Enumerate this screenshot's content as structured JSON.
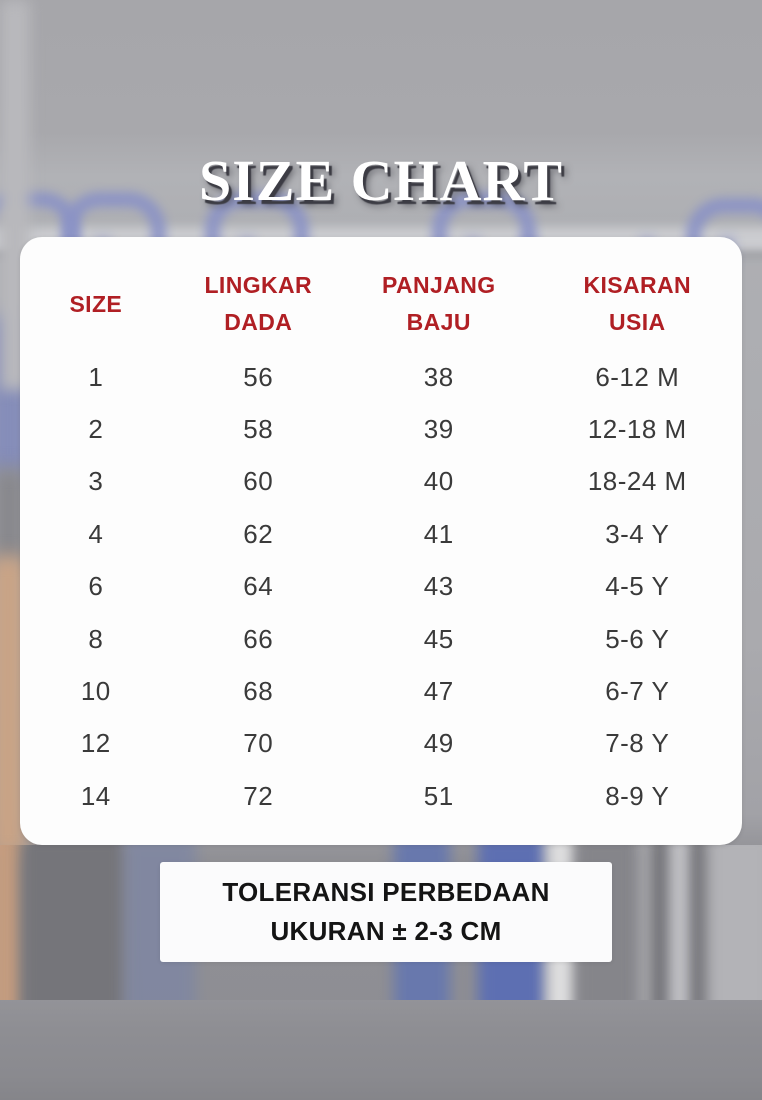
{
  "title": "SIZE CHART",
  "chart_data": {
    "type": "table",
    "title": "SIZE CHART",
    "columns": [
      "SIZE",
      "LINGKAR DADA",
      "PANJANG BAJU",
      "KISARAN USIA"
    ],
    "rows": [
      [
        "1",
        "56",
        "38",
        "6-12 M"
      ],
      [
        "2",
        "58",
        "39",
        "12-18 M"
      ],
      [
        "3",
        "60",
        "40",
        "18-24 M"
      ],
      [
        "4",
        "62",
        "41",
        "3-4 Y"
      ],
      [
        "6",
        "64",
        "43",
        "4-5 Y"
      ],
      [
        "8",
        "66",
        "45",
        "5-6 Y"
      ],
      [
        "10",
        "68",
        "47",
        "6-7 Y"
      ],
      [
        "12",
        "70",
        "49",
        "7-8 Y"
      ],
      [
        "14",
        "72",
        "51",
        "8-9 Y"
      ]
    ],
    "note": "TOLERANSI PERBEDAAN UKURAN ± 2-3 CM"
  },
  "table": {
    "headers": [
      {
        "line1": "SIZE",
        "line2": ""
      },
      {
        "line1": "LINGKAR",
        "line2": "DADA"
      },
      {
        "line1": "PANJANG",
        "line2": "BAJU"
      },
      {
        "line1": "KISARAN",
        "line2": "USIA"
      }
    ],
    "rows": [
      {
        "size": "1",
        "chest": "56",
        "length": "38",
        "age": "6-12 M"
      },
      {
        "size": "2",
        "chest": "58",
        "length": "39",
        "age": "12-18 M"
      },
      {
        "size": "3",
        "chest": "60",
        "length": "40",
        "age": "18-24 M"
      },
      {
        "size": "4",
        "chest": "62",
        "length": "41",
        "age": "3-4 Y"
      },
      {
        "size": "6",
        "chest": "64",
        "length": "43",
        "age": "4-5 Y"
      },
      {
        "size": "8",
        "chest": "66",
        "length": "45",
        "age": "5-6 Y"
      },
      {
        "size": "10",
        "chest": "68",
        "length": "47",
        "age": "6-7 Y"
      },
      {
        "size": "12",
        "chest": "70",
        "length": "49",
        "age": "7-8 Y"
      },
      {
        "size": "14",
        "chest": "72",
        "length": "51",
        "age": "8-9 Y"
      }
    ]
  },
  "note": {
    "line1": "TOLERANSI PERBEDAAN",
    "line2": "UKURAN ± 2-3 CM"
  },
  "colors": {
    "header_red": "#b01f24",
    "body_text": "#3a3a3a",
    "note_text": "#141414",
    "card_background": "#fdfdfd",
    "background_gray": "#a7a7ab",
    "hanger_blue": "#8a92c6",
    "title_white": "#ffffff"
  }
}
